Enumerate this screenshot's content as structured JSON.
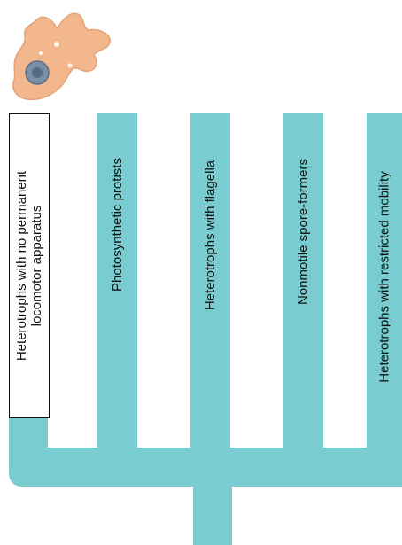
{
  "colors": {
    "branch": "#79cdd0",
    "amoeba_body": "#f2b78d",
    "amoeba_outline": "#e3a27a",
    "nucleus": "#7b8fa6",
    "label_text": "#111111"
  },
  "icon": "amoeba-icon",
  "branches": [
    {
      "lines": [
        "Heterotrophs with no permanent",
        "locomotor apparatus"
      ],
      "boxed": true
    },
    {
      "lines": [
        "Photosynthetic protists"
      ],
      "boxed": false
    },
    {
      "lines": [
        "Heterotrophs with flagella"
      ],
      "boxed": false
    },
    {
      "lines": [
        "Nonmotile spore-formers"
      ],
      "boxed": false
    },
    {
      "lines": [
        "Heterotrophs with restricted mobility"
      ],
      "boxed": false
    }
  ]
}
